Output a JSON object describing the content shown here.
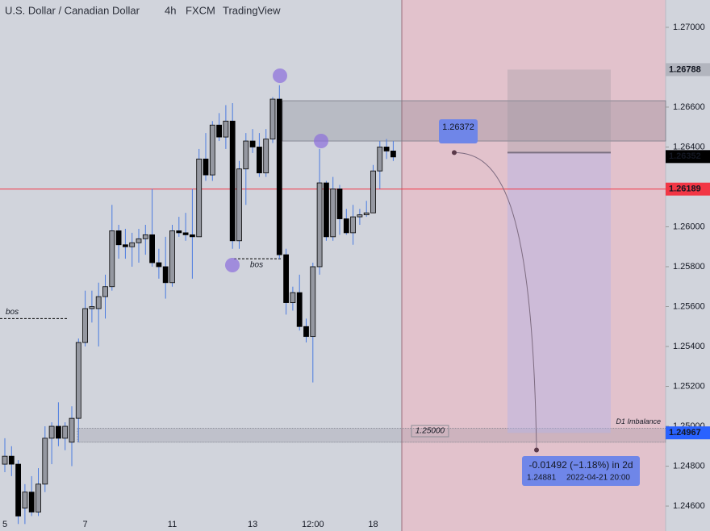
{
  "chart_data": {
    "type": "candlestick",
    "title": "U.S. Dollar / Canadian Dollar",
    "interval": "4h",
    "source": "FXCM",
    "platform": "TradingView",
    "ylim": [
      1.24475,
      1.27137
    ],
    "yticks": [
      {
        "value": 1.27,
        "label": "1.27000"
      },
      {
        "value": 1.268,
        "label": "1.26800"
      },
      {
        "value": 1.266,
        "label": "1.26600"
      },
      {
        "value": 1.264,
        "label": "1.26400"
      },
      {
        "value": 1.262,
        "label": "1.26200"
      },
      {
        "value": 1.26,
        "label": "1.26000"
      },
      {
        "value": 1.258,
        "label": "1.25800"
      },
      {
        "value": 1.256,
        "label": "1.25600"
      },
      {
        "value": 1.254,
        "label": "1.25400"
      },
      {
        "value": 1.252,
        "label": "1.25200"
      },
      {
        "value": 1.25,
        "label": "1.25000"
      },
      {
        "value": 1.248,
        "label": "1.24800"
      },
      {
        "value": 1.246,
        "label": "1.24600"
      }
    ],
    "categories": [
      "5",
      null,
      null,
      null,
      null,
      null,
      null,
      null,
      null,
      null,
      null,
      null,
      "7",
      null,
      null,
      null,
      null,
      null,
      null,
      null,
      null,
      null,
      null,
      null,
      null,
      "11",
      null,
      null,
      null,
      null,
      null,
      null,
      null,
      null,
      null,
      null,
      null,
      "13",
      null,
      null,
      null,
      null,
      null,
      null,
      null,
      null,
      "12:00",
      null,
      null,
      null,
      null,
      null,
      null,
      null,
      null,
      "18",
      null,
      null,
      null
    ],
    "open": [
      1.2481,
      1.2485,
      1.2481,
      1.2459,
      1.2467,
      1.2457,
      1.2471,
      1.2494,
      1.25,
      1.2494,
      1.2492,
      1.2504,
      1.2542,
      1.2559,
      1.2559,
      1.2565,
      1.257,
      1.2598,
      1.2591,
      1.259,
      1.2592,
      1.2594,
      1.2596,
      1.2582,
      1.258,
      1.2572,
      1.2598,
      1.2597,
      1.2596,
      1.2595,
      1.2634,
      1.2626,
      1.2651,
      1.2645,
      1.2653,
      1.2593,
      1.2629,
      1.2643,
      1.264,
      1.2627,
      1.2644,
      1.2664,
      1.2586,
      1.2562,
      1.2567,
      1.255,
      1.2545,
      1.258,
      1.2622,
      1.2595,
      1.2619,
      1.2604,
      1.2597,
      1.2605,
      1.2606,
      1.2607,
      1.2628,
      1.264,
      1.2638
    ],
    "high": [
      1.2494,
      1.249,
      1.2483,
      1.2471,
      1.2475,
      1.2479,
      1.25,
      1.2502,
      1.2512,
      1.2502,
      1.251,
      1.2544,
      1.2568,
      1.2568,
      1.2572,
      1.2576,
      1.2611,
      1.2601,
      1.2599,
      1.2597,
      1.2599,
      1.2601,
      1.2619,
      1.2589,
      1.2595,
      1.2601,
      1.2605,
      1.2607,
      1.2619,
      1.2639,
      1.2647,
      1.2653,
      1.2657,
      1.2661,
      1.2662,
      1.2633,
      1.2647,
      1.2649,
      1.2647,
      1.2649,
      1.2665,
      1.2671,
      1.2589,
      1.257,
      1.2576,
      1.2554,
      1.2582,
      1.2639,
      1.2623,
      1.2625,
      1.2621,
      1.2609,
      1.2611,
      1.2609,
      1.2613,
      1.2631,
      1.2643,
      1.2644,
      1.2643
    ],
    "low": [
      1.2477,
      1.2475,
      1.2451,
      1.2451,
      1.2455,
      1.2455,
      1.2467,
      1.2481,
      1.249,
      1.2488,
      1.248,
      1.2492,
      1.254,
      1.2552,
      1.254,
      1.2554,
      1.2568,
      1.2584,
      1.2584,
      1.258,
      1.2582,
      1.2586,
      1.258,
      1.2574,
      1.2564,
      1.257,
      1.2595,
      1.2593,
      1.2574,
      1.2595,
      1.2623,
      1.2623,
      1.2643,
      1.2639,
      1.2589,
      1.2589,
      1.2611,
      1.2637,
      1.2625,
      1.2625,
      1.2642,
      1.2584,
      1.2556,
      1.2558,
      1.2548,
      1.2542,
      1.2522,
      1.2576,
      1.2593,
      1.2593,
      1.2596,
      1.2596,
      1.2591,
      1.2601,
      1.2605,
      1.2607,
      1.2619,
      1.2634,
      1.2633
    ],
    "close": [
      1.2485,
      1.2481,
      1.2455,
      1.2467,
      1.2457,
      1.2471,
      1.2494,
      1.25,
      1.2494,
      1.25,
      1.2504,
      1.2542,
      1.2559,
      1.256,
      1.2565,
      1.257,
      1.2598,
      1.2591,
      1.259,
      1.2592,
      1.2594,
      1.2596,
      1.2582,
      1.258,
      1.2572,
      1.2598,
      1.2597,
      1.2596,
      1.2595,
      1.2634,
      1.2626,
      1.2651,
      1.2645,
      1.2653,
      1.2593,
      1.2629,
      1.2643,
      1.264,
      1.2627,
      1.2644,
      1.2664,
      1.2586,
      1.2562,
      1.2567,
      1.255,
      1.2545,
      1.258,
      1.2622,
      1.2595,
      1.2619,
      1.2604,
      1.2597,
      1.2605,
      1.2606,
      1.2607,
      1.2628,
      1.264,
      1.2638,
      1.2635
    ],
    "up_color": "#9598a1",
    "down_color": "#000000",
    "wick_color": "#4a7be0",
    "price_labels": [
      {
        "value": 1.26788,
        "color": "#b2b5be",
        "text_color": "#131722"
      },
      {
        "value": 1.26352,
        "color": "#000000",
        "text_color": "#ffffff"
      },
      {
        "value": 1.26189,
        "color": "#f23645",
        "text_color": "#ffffff"
      },
      {
        "value": 1.24967,
        "color": "#2962ff",
        "text_color": "#ffffff"
      }
    ],
    "zones": [
      {
        "low": 1.2643,
        "high": 1.26632
      },
      {
        "low": 1.2492,
        "high": 1.2499,
        "label": {
          "value": 1.25,
          "label": "1.25000"
        },
        "name": "D1 Imbalance"
      }
    ],
    "bos": [
      {
        "label": "bos",
        "value": 1.2554
      },
      {
        "label": "bos",
        "value": 1.2584
      }
    ],
    "projection": {
      "from": 1.26372,
      "to": 1.24881,
      "change": "-0.01492 (−1.18%) in 2d",
      "time": "2022-04-21  20:00"
    }
  }
}
